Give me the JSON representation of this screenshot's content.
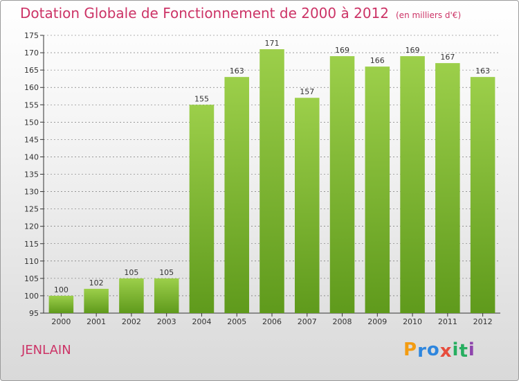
{
  "title": "Dotation Globale de Fonctionnement de 2000 à 2012",
  "unit": "(en milliers d'€)",
  "commune": "JENLAIN",
  "logo": {
    "letters": [
      "P",
      "r",
      "o",
      "x",
      "i",
      "t",
      "i"
    ],
    "colors": [
      "#f39c12",
      "#2e86de",
      "#2e86de",
      "#e74c3c",
      "#27ae60",
      "#27ae60",
      "#8e44ad"
    ]
  },
  "colors": {
    "accent": "#cc3366",
    "bar_light": "#9ccf4a",
    "bar_dark": "#5f9a1c",
    "grid": "#222222"
  },
  "chart_data": {
    "type": "bar",
    "categories": [
      "2000",
      "2001",
      "2002",
      "2003",
      "2004",
      "2005",
      "2006",
      "2007",
      "2008",
      "2009",
      "2010",
      "2011",
      "2012"
    ],
    "values": [
      100,
      102,
      105,
      105,
      155,
      163,
      171,
      157,
      169,
      166,
      169,
      167,
      163
    ],
    "ylim": [
      95,
      175
    ],
    "yticks": [
      95,
      100,
      105,
      110,
      115,
      120,
      125,
      130,
      135,
      140,
      145,
      150,
      155,
      160,
      165,
      170,
      175
    ],
    "grid": "horizontal dashed",
    "data_labels": true
  }
}
